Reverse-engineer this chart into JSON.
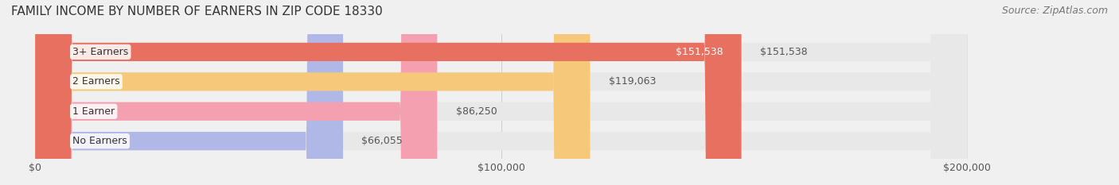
{
  "title": "FAMILY INCOME BY NUMBER OF EARNERS IN ZIP CODE 18330",
  "source": "Source: ZipAtlas.com",
  "categories": [
    "No Earners",
    "1 Earner",
    "2 Earners",
    "3+ Earners"
  ],
  "values": [
    66055,
    86250,
    119063,
    151538
  ],
  "bar_colors": [
    "#b0b8e8",
    "#f4a0b0",
    "#f5c87a",
    "#e87060"
  ],
  "bar_labels": [
    "$66,055",
    "$86,250",
    "$119,063",
    "$151,538"
  ],
  "label_colors": [
    "#555555",
    "#555555",
    "#555555",
    "#ffffff"
  ],
  "xlim": [
    0,
    200000
  ],
  "xticks": [
    0,
    100000,
    200000
  ],
  "xtick_labels": [
    "$0",
    "$100,000",
    "$200,000"
  ],
  "background_color": "#f0f0f0",
  "bar_bg_color": "#e8e8e8",
  "title_fontsize": 11,
  "source_fontsize": 9,
  "label_fontsize": 9,
  "category_fontsize": 9,
  "tick_fontsize": 9
}
